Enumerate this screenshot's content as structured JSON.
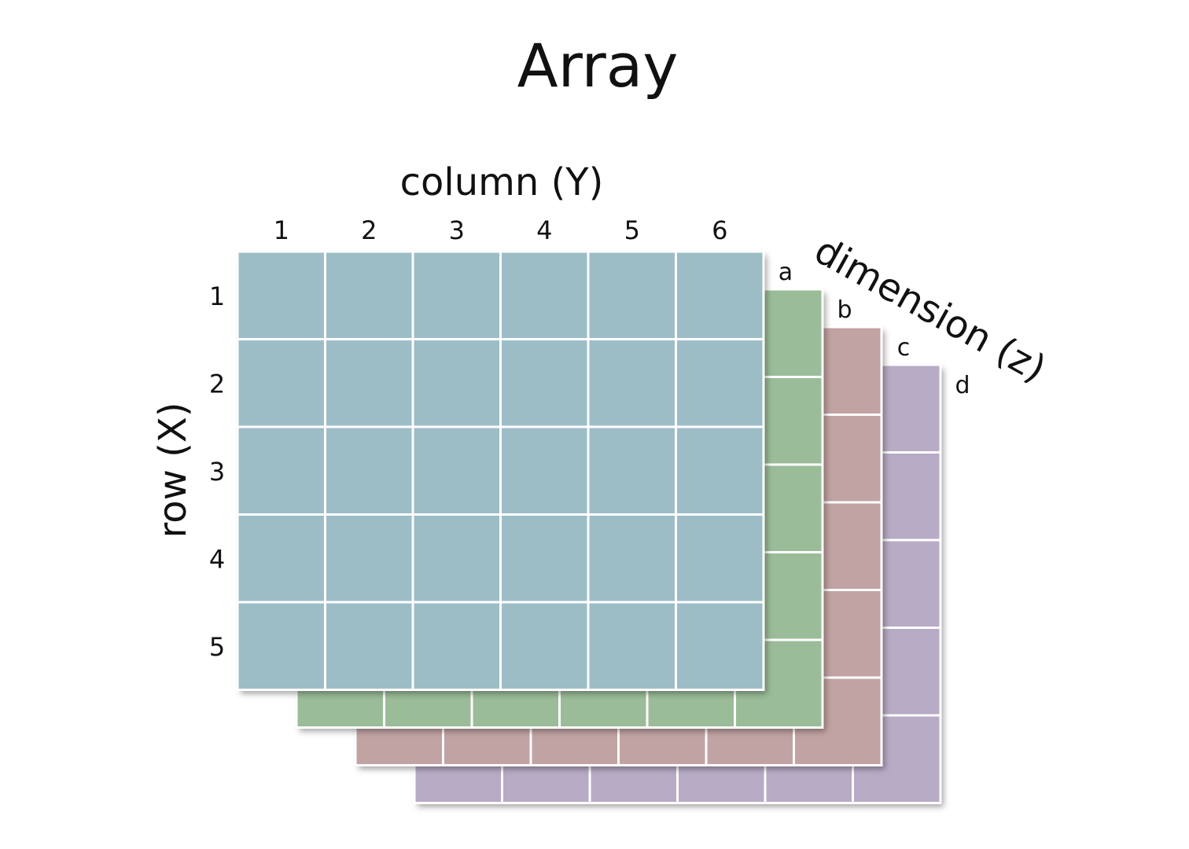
{
  "title": "Array",
  "column_axis": {
    "label": "column (Y)",
    "ticks": [
      "1",
      "2",
      "3",
      "4",
      "5",
      "6"
    ]
  },
  "row_axis": {
    "label": "row (X)",
    "ticks": [
      "1",
      "2",
      "3",
      "4",
      "5"
    ]
  },
  "dimension_axis": {
    "label": "dimension (z)"
  },
  "grid": {
    "rows": 5,
    "columns": 6
  },
  "layers": [
    {
      "letter": "a",
      "color": "#9dbdc6"
    },
    {
      "letter": "b",
      "color": "#9bbc98"
    },
    {
      "letter": "c",
      "color": "#c2a3a3"
    },
    {
      "letter": "d",
      "color": "#b8abc6"
    }
  ]
}
